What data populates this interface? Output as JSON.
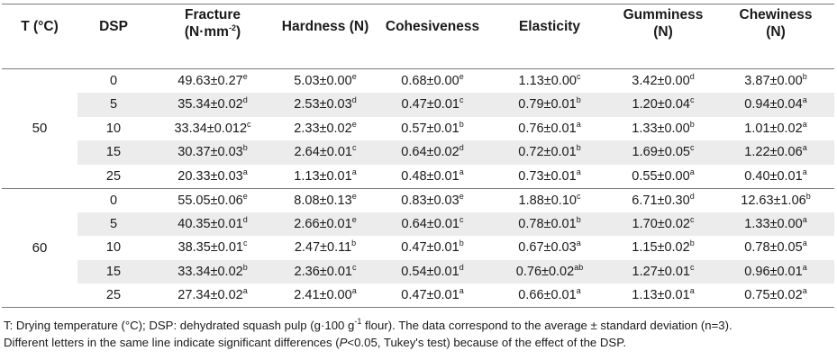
{
  "headers": {
    "temp": "T (°C)",
    "dsp": "DSP",
    "fracture_l1": "Fracture",
    "fracture_l2": "(N·mm",
    "fracture_sup": "-2",
    "fracture_close": ")",
    "hardness": "Hardness (N)",
    "cohesiveness": "Cohesiveness",
    "elasticity": "Elasticity",
    "gumminess_l1": "Gumminess",
    "gumminess_l2": "(N)",
    "chewiness_l1": "Chewiness",
    "chewiness_l2": "(N)"
  },
  "groups": [
    {
      "temp": "50",
      "rows": [
        {
          "dsp": "0",
          "fr": "49.63±0.27",
          "fr_s": "e",
          "ha": "5.03±0.00",
          "ha_s": "e",
          "co": "0.68±0.00",
          "co_s": "e",
          "el": "1.13±0.00",
          "el_s": "c",
          "gu": "3.42±0.00",
          "gu_s": "d",
          "ch": "3.87±0.00",
          "ch_s": "b"
        },
        {
          "dsp": "5",
          "fr": "35.34±0.02",
          "fr_s": "d",
          "ha": "2.53±0.03",
          "ha_s": "d",
          "co": "0.47±0.01",
          "co_s": "c",
          "el": "0.79±0.01",
          "el_s": "b",
          "gu": "1.20±0.04",
          "gu_s": "c",
          "ch": "0.94±0.04",
          "ch_s": "a"
        },
        {
          "dsp": "10",
          "fr": "33.34±0.012",
          "fr_s": "c",
          "ha": "2.33±0.02",
          "ha_s": "e",
          "co": "0.57±0.01",
          "co_s": "b",
          "el": "0.76±0.01",
          "el_s": "a",
          "gu": "1.33±0.00",
          "gu_s": "b",
          "ch": "1.01±0.02",
          "ch_s": "a"
        },
        {
          "dsp": "15",
          "fr": "30.37±0.03",
          "fr_s": "b",
          "ha": "2.64±0.01",
          "ha_s": "c",
          "co": "0.64±0.02",
          "co_s": "d",
          "el": "0.72±0.01",
          "el_s": "b",
          "gu": "1.69±0.05",
          "gu_s": "c",
          "ch": "1.22±0.06",
          "ch_s": "a"
        },
        {
          "dsp": "25",
          "fr": "20.33±0.03",
          "fr_s": "a",
          "ha": "1.13±0.01",
          "ha_s": "a",
          "co": "0.48±0.01",
          "co_s": "a",
          "el": "0.73±0.01",
          "el_s": "a",
          "gu": "0.55±0.00",
          "gu_s": "a",
          "ch": "0.40±0.01",
          "ch_s": "a"
        }
      ]
    },
    {
      "temp": "60",
      "rows": [
        {
          "dsp": "0",
          "fr": "55.05±0.06",
          "fr_s": "e",
          "ha": "8.08±0.13",
          "ha_s": "e",
          "co": "0.83±0.03",
          "co_s": "e",
          "el": "1.88±0.10",
          "el_s": "c",
          "gu": "6.71±0.30",
          "gu_s": "d",
          "ch": "12.63±1.06",
          "ch_s": "b"
        },
        {
          "dsp": "5",
          "fr": "40.35±0.01",
          "fr_s": "d",
          "ha": "2.66±0.01",
          "ha_s": "e",
          "co": "0.64±0.01",
          "co_s": "c",
          "el": "0.78±0.01",
          "el_s": "b",
          "gu": "1.70±0.02",
          "gu_s": "c",
          "ch": "1.33±0.00",
          "ch_s": "a"
        },
        {
          "dsp": "10",
          "fr": "38.35±0.01",
          "fr_s": "c",
          "ha": "2.47±0.11",
          "ha_s": "b",
          "co": "0.47±0.01",
          "co_s": "b",
          "el": "0.67±0.03",
          "el_s": "a",
          "gu": "1.15±0.02",
          "gu_s": "b",
          "ch": "0.78±0.05",
          "ch_s": "a"
        },
        {
          "dsp": "15",
          "fr": "33.34±0.02",
          "fr_s": "b",
          "ha": "2.36±0.01",
          "ha_s": "c",
          "co": "0.54±0.01",
          "co_s": "d",
          "el": "0.76±0.02",
          "el_s": "ab",
          "gu": "1.27±0.01",
          "gu_s": "c",
          "ch": "0.96±0.01",
          "ch_s": "a"
        },
        {
          "dsp": "25",
          "fr": "27.34±0.02",
          "fr_s": "a",
          "ha": "2.41±0.00",
          "ha_s": "a",
          "co": "0.47±0.01",
          "co_s": "a",
          "el": "0.66±0.01",
          "el_s": "a",
          "gu": "1.13±0.01",
          "gu_s": "a",
          "ch": "0.75±0.02",
          "ch_s": "a"
        }
      ]
    }
  ],
  "footnote": {
    "l1_a": "T: Drying temperature (°C); DSP: dehydrated squash pulp (g·100 g",
    "l1_sup": "-1",
    "l1_b": " flour). The data correspond to the average ± standard deviation (n=3).",
    "l2_a": "Different letters in the same line indicate significant differences (",
    "l2_em": "P",
    "l2_b": "<0.05, Tukey's test) because of the effect of the DSP."
  }
}
